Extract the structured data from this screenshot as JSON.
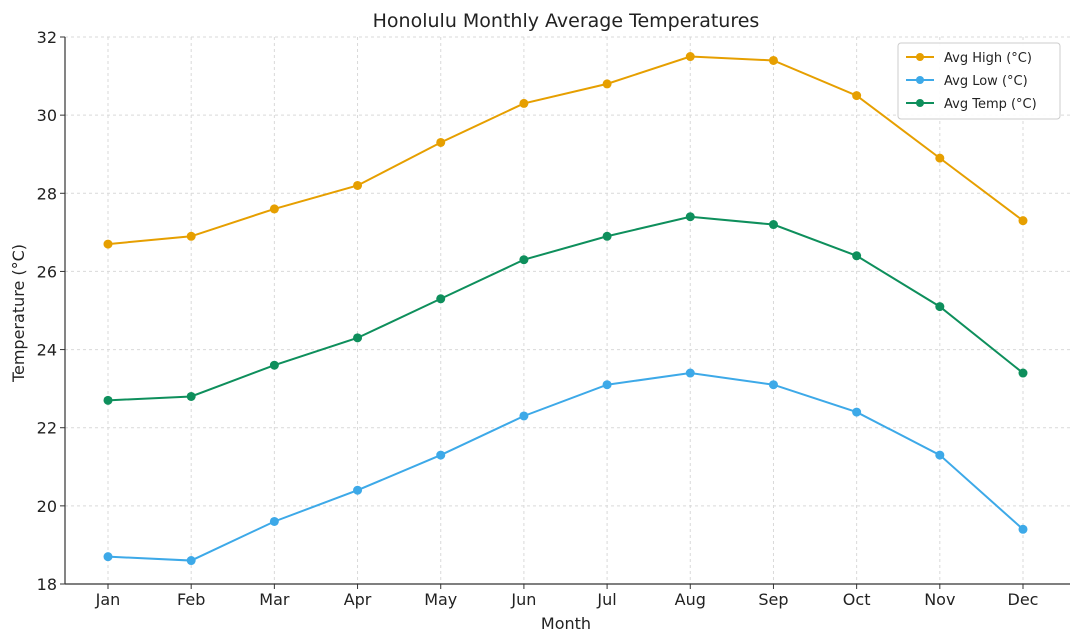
{
  "chart_data": {
    "type": "line",
    "title": "Honolulu Monthly Average Temperatures",
    "xlabel": "Month",
    "ylabel": "Temperature (°C)",
    "categories": [
      "Jan",
      "Feb",
      "Mar",
      "Apr",
      "May",
      "Jun",
      "Jul",
      "Aug",
      "Sep",
      "Oct",
      "Nov",
      "Dec"
    ],
    "ylim": [
      18,
      32
    ],
    "yticks": [
      18,
      20,
      22,
      24,
      26,
      28,
      30,
      32
    ],
    "grid": true,
    "legend_position": "top-right",
    "series": [
      {
        "name": "Avg High (°C)",
        "color": "#E69F00",
        "values": [
          26.7,
          26.9,
          27.6,
          28.2,
          29.3,
          30.3,
          30.8,
          31.5,
          31.4,
          30.5,
          28.9,
          27.3
        ]
      },
      {
        "name": "Avg Low (°C)",
        "color": "#3DA9E8",
        "values": [
          18.7,
          18.6,
          19.6,
          20.4,
          21.3,
          22.3,
          23.1,
          23.4,
          23.1,
          22.4,
          21.3,
          19.4
        ]
      },
      {
        "name": "Avg Temp (°C)",
        "color": "#0E8F5C",
        "values": [
          22.7,
          22.8,
          23.6,
          24.3,
          25.3,
          26.3,
          26.9,
          27.4,
          27.2,
          26.4,
          25.1,
          23.4
        ]
      }
    ]
  }
}
